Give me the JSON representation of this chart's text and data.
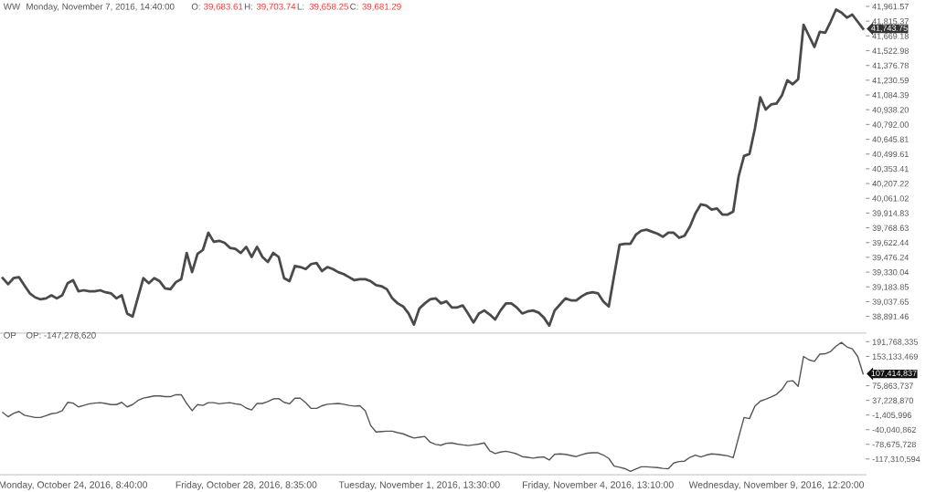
{
  "chart_data": [
    {
      "type": "line",
      "title": "WW",
      "subtitle": "Monday, November 7, 2016, 14:40:00",
      "annotations": [
        "O: 39,683.61",
        "H: 39,703.74",
        "L: 39,658.25",
        "C: 39,681.29",
        "41,743.75"
      ],
      "categories": [
        null,
        null,
        null,
        null,
        null,
        null,
        null,
        null,
        null,
        null,
        null,
        null,
        null,
        null,
        null,
        null,
        null,
        null,
        null,
        null,
        null,
        null,
        null,
        null,
        null,
        null,
        null,
        null,
        null,
        null,
        null,
        null,
        null,
        null,
        null,
        null,
        null,
        null,
        null,
        null,
        null,
        null,
        null,
        null,
        null,
        null,
        null,
        null,
        null,
        null,
        null,
        null,
        null,
        null,
        null,
        null,
        null,
        null,
        null,
        null,
        null,
        null,
        null,
        null,
        null,
        null,
        null,
        null,
        null,
        null,
        null,
        null,
        null,
        null,
        null,
        null,
        null,
        null,
        null,
        null,
        null,
        null,
        null,
        null,
        null,
        null,
        null,
        null,
        null,
        null,
        null,
        null,
        null,
        null,
        null,
        null,
        null,
        null,
        null,
        null,
        null,
        null,
        null,
        null,
        null,
        null,
        null,
        null,
        null,
        null,
        null,
        null,
        null,
        null,
        null,
        null,
        null,
        null,
        null,
        null,
        null,
        null,
        null,
        null,
        null,
        null,
        null,
        null,
        null,
        null,
        null,
        null,
        null,
        null,
        null,
        null,
        null,
        null,
        null,
        null,
        null,
        null,
        null,
        null,
        null,
        null,
        null,
        null,
        null,
        null,
        null,
        null,
        null,
        null,
        null,
        null,
        null,
        null,
        null,
        null
      ],
      "series": [
        {
          "color": "#4a4a4a",
          "values": [
            39270,
            39210,
            39270,
            39280,
            39200,
            39120,
            39080,
            39060,
            39070,
            39100,
            39070,
            39100,
            39220,
            39250,
            39140,
            39150,
            39140,
            39140,
            39150,
            39130,
            39120,
            39070,
            39100,
            38920,
            38890,
            39080,
            39270,
            39220,
            39270,
            39240,
            39170,
            39160,
            39230,
            39260,
            39520,
            39330,
            39510,
            39550,
            39720,
            39630,
            39640,
            39620,
            39570,
            39560,
            39520,
            39580,
            39480,
            39580,
            39480,
            39430,
            39520,
            39480,
            39270,
            39240,
            39390,
            39380,
            39360,
            39410,
            39420,
            39340,
            39380,
            39360,
            39330,
            39310,
            39280,
            39250,
            39260,
            39260,
            39240,
            39200,
            39190,
            39160,
            39070,
            39020,
            38990,
            38920,
            38810,
            38970,
            39020,
            39060,
            39070,
            39020,
            39040,
            38980,
            38980,
            39000,
            38920,
            38830,
            38920,
            38950,
            38910,
            38860,
            38950,
            39020,
            39020,
            38980,
            38920,
            38940,
            38950,
            38930,
            38880,
            38800,
            38950,
            39010,
            39070,
            39050,
            39050,
            39090,
            39120,
            39130,
            39120,
            39040,
            38990,
            39300,
            39600,
            39610,
            39610,
            39700,
            39740,
            39750,
            39730,
            39710,
            39680,
            39720,
            39720,
            39670,
            39690,
            39780,
            39910,
            40000,
            39990,
            39950,
            39960,
            39900,
            39900,
            39930,
            40280,
            40480,
            40500,
            40750,
            41060,
            40940,
            40990,
            41000,
            41080,
            41230,
            41190,
            41240,
            41780,
            41670,
            41560,
            41710,
            41700,
            41810,
            41930,
            41900,
            41850,
            41880,
            41810,
            41740
          ]
        }
      ],
      "ylim": [
        38726,
        41961.57
      ],
      "yticks": [
        {
          "value": 41961.57,
          "label": "41,961.57"
        },
        {
          "value": 41815.37,
          "label": "41,815.37"
        },
        {
          "value": 41669.18,
          "label": "41,669.18"
        },
        {
          "value": 41522.98,
          "label": "41,522.98"
        },
        {
          "value": 41376.78,
          "label": "41,376.78"
        },
        {
          "value": 41230.59,
          "label": "41,230.59"
        },
        {
          "value": 41084.39,
          "label": "41,084.39"
        },
        {
          "value": 40938.2,
          "label": "40,938.20"
        },
        {
          "value": 40792.0,
          "label": "40,792.00"
        },
        {
          "value": 40645.81,
          "label": "40,645.81"
        },
        {
          "value": 40499.61,
          "label": "40,499.61"
        },
        {
          "value": 40353.41,
          "label": "40,353.41"
        },
        {
          "value": 40207.22,
          "label": "40,207.22"
        },
        {
          "value": 40061.02,
          "label": "40,061.02"
        },
        {
          "value": 39914.83,
          "label": "39,914.83"
        },
        {
          "value": 39768.63,
          "label": "39,768.63"
        },
        {
          "value": 39622.44,
          "label": "39,622.44"
        },
        {
          "value": 39476.24,
          "label": "39,476.24"
        },
        {
          "value": 39330.04,
          "label": "39,330.04"
        },
        {
          "value": 39183.85,
          "label": "39,183.85"
        },
        {
          "value": 39037.65,
          "label": "39,037.65"
        },
        {
          "value": 38891.46,
          "label": "38,891.46"
        }
      ],
      "tick_labels": "y",
      "grid": false,
      "legend": false
    },
    {
      "type": "line",
      "title": "OP",
      "subtitle": "OP: -147,278,620",
      "annotations": [
        "107,414,837"
      ],
      "categories": [
        null,
        null,
        null,
        null,
        null,
        null,
        null,
        null,
        null,
        null,
        null,
        null,
        null,
        "Monday, October 24, 2016, 8:40:00",
        null,
        null,
        null,
        null,
        null,
        null,
        null,
        null,
        null,
        null,
        null,
        null,
        null,
        null,
        null,
        null,
        null,
        null,
        null,
        null,
        null,
        null,
        null,
        null,
        null,
        null,
        null,
        null,
        null,
        null,
        null,
        "Friday, October 28, 2016, 8:35:00",
        null,
        null,
        null,
        null,
        null,
        null,
        null,
        null,
        null,
        null,
        null,
        null,
        null,
        null,
        null,
        null,
        null,
        null,
        null,
        null,
        null,
        null,
        null,
        null,
        null,
        null,
        null,
        null,
        null,
        null,
        null,
        "Tuesday, November 1, 2016, 13:30:00",
        null,
        null,
        null,
        null,
        null,
        null,
        null,
        null,
        null,
        null,
        null,
        null,
        null,
        null,
        null,
        null,
        null,
        null,
        null,
        null,
        null,
        null,
        null,
        null,
        null,
        null,
        null,
        null,
        null,
        null,
        null,
        null,
        "Friday, November 4, 2016, 13:10:00",
        null,
        null,
        null,
        null,
        null,
        null,
        null,
        null,
        null,
        null,
        null,
        null,
        null,
        null,
        null,
        null,
        null,
        null,
        null,
        null,
        null,
        null,
        null,
        null,
        null,
        null,
        null,
        null,
        null,
        null,
        null,
        null,
        "Wednesday, November 9, 2016, 12:20:00",
        null,
        null,
        null,
        null,
        null,
        null,
        null,
        null,
        null,
        null,
        null,
        null,
        null,
        null,
        null,
        null
      ],
      "series": [
        {
          "color": "#555555",
          "values": [
            5000000,
            -6000000,
            3000000,
            8000000,
            -2000000,
            -5000000,
            -8000000,
            -8000000,
            -3000000,
            2000000,
            4000000,
            10000000,
            32000000,
            30000000,
            20000000,
            24000000,
            28000000,
            30000000,
            31000000,
            29000000,
            26000000,
            26000000,
            32000000,
            20000000,
            26000000,
            37000000,
            43000000,
            46000000,
            49000000,
            49000000,
            47000000,
            47000000,
            52000000,
            52000000,
            29000000,
            10000000,
            26000000,
            24000000,
            31000000,
            31000000,
            28000000,
            30000000,
            31000000,
            28000000,
            26000000,
            17000000,
            12000000,
            29000000,
            29000000,
            34000000,
            41000000,
            42000000,
            32000000,
            28000000,
            43000000,
            43000000,
            31000000,
            16000000,
            16000000,
            23000000,
            27000000,
            28000000,
            29000000,
            27000000,
            24000000,
            22000000,
            23000000,
            10000000,
            -29000000,
            -46000000,
            -45000000,
            -44000000,
            -44000000,
            -48000000,
            -51000000,
            -57000000,
            -62000000,
            -60000000,
            -58000000,
            -73000000,
            -79000000,
            -81000000,
            -76000000,
            -75000000,
            -78000000,
            -80000000,
            -82000000,
            -80000000,
            -78000000,
            -75000000,
            -96000000,
            -103000000,
            -99000000,
            -97000000,
            -100000000,
            -104000000,
            -111000000,
            -113000000,
            -115000000,
            -113000000,
            -112000000,
            -120000000,
            -105000000,
            -104000000,
            -105000000,
            -108000000,
            -111000000,
            -106000000,
            -102000000,
            -101000000,
            -101000000,
            -107000000,
            -116000000,
            -136000000,
            -139000000,
            -143000000,
            -150000000,
            -144000000,
            -138000000,
            -138000000,
            -139000000,
            -140000000,
            -142000000,
            -143000000,
            -128000000,
            -124000000,
            -123000000,
            -113000000,
            -107000000,
            -112000000,
            -107000000,
            -104000000,
            -105000000,
            -107000000,
            -109000000,
            -114000000,
            -60000000,
            -8000000,
            -11000000,
            22000000,
            35000000,
            40000000,
            46000000,
            53000000,
            66000000,
            87000000,
            89000000,
            74000000,
            153000000,
            144000000,
            140000000,
            159000000,
            160000000,
            166000000,
            180000000,
            190000000,
            178000000,
            173000000,
            153000000,
            107000000
          ]
        }
      ],
      "ylim": [
        -158970000,
        209340000
      ],
      "yticks": [
        {
          "value": 191768335,
          "label": "191,768,335"
        },
        {
          "value": 153133469,
          "label": "153,133,469"
        },
        {
          "value": 75863737,
          "label": "75,863,737"
        },
        {
          "value": 37228870,
          "label": "37,228,870"
        },
        {
          "value": -1405996,
          "label": "-1,405,996"
        },
        {
          "value": -40040862,
          "label": "-40,040,862"
        },
        {
          "value": -78675728,
          "label": "-78,675,728"
        },
        {
          "value": -117310594,
          "label": "-117,310,594"
        }
      ],
      "grid": false,
      "legend": false
    }
  ]
}
